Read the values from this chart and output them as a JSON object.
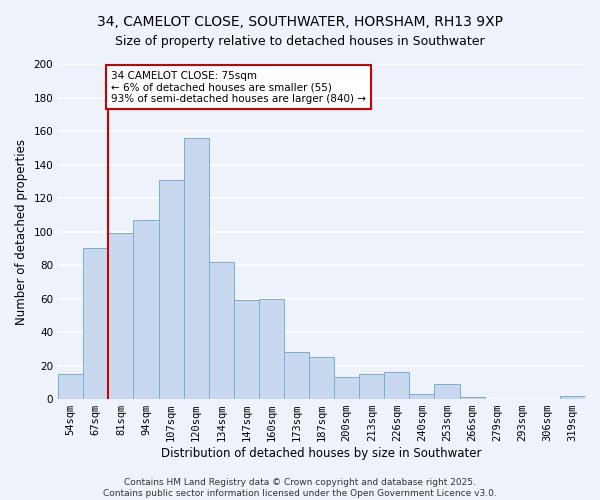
{
  "title_line1": "34, CAMELOT CLOSE, SOUTHWATER, HORSHAM, RH13 9XP",
  "title_line2": "Size of property relative to detached houses in Southwater",
  "xlabel": "Distribution of detached houses by size in Southwater",
  "ylabel": "Number of detached properties",
  "bar_labels": [
    "54sqm",
    "67sqm",
    "81sqm",
    "94sqm",
    "107sqm",
    "120sqm",
    "134sqm",
    "147sqm",
    "160sqm",
    "173sqm",
    "187sqm",
    "200sqm",
    "213sqm",
    "226sqm",
    "240sqm",
    "253sqm",
    "266sqm",
    "279sqm",
    "293sqm",
    "306sqm",
    "319sqm"
  ],
  "bar_values": [
    15,
    90,
    99,
    107,
    131,
    156,
    82,
    59,
    60,
    28,
    25,
    13,
    15,
    16,
    3,
    9,
    1,
    0,
    0,
    0,
    2
  ],
  "bar_color": "#c8d8ee",
  "bar_edge_color": "#7aaed4",
  "ylim": [
    0,
    200
  ],
  "yticks": [
    0,
    20,
    40,
    60,
    80,
    100,
    120,
    140,
    160,
    180,
    200
  ],
  "property_line_color": "#cc0000",
  "annotation_title": "34 CAMELOT CLOSE: 75sqm",
  "annotation_line1": "← 6% of detached houses are smaller (55)",
  "annotation_line2": "93% of semi-detached houses are larger (840) →",
  "annotation_box_color": "#ffffff",
  "annotation_box_edge": "#cc0000",
  "footnote_line1": "Contains HM Land Registry data © Crown copyright and database right 2025.",
  "footnote_line2": "Contains public sector information licensed under the Open Government Licence v3.0.",
  "background_color": "#eef2fa",
  "grid_color": "#ffffff",
  "title_fontsize": 10,
  "subtitle_fontsize": 9,
  "axis_label_fontsize": 8.5,
  "tick_fontsize": 7.5,
  "annotation_fontsize": 7.5,
  "footnote_fontsize": 6.5
}
